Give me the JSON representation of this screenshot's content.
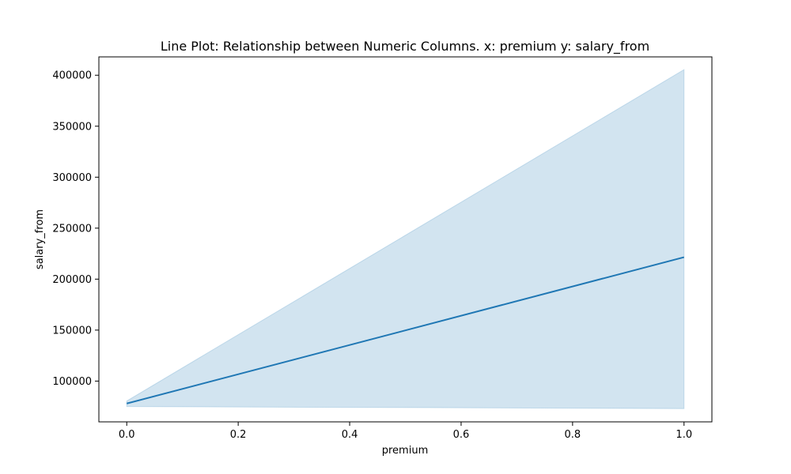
{
  "chart_data": {
    "type": "line",
    "title": "Line Plot: Relationship between Numeric Columns. x: premium y: salary_from",
    "xlabel": "premium",
    "ylabel": "salary_from",
    "xlim": [
      -0.05,
      1.05
    ],
    "ylim": [
      60000,
      418000
    ],
    "x_ticks": [
      0.0,
      0.2,
      0.4,
      0.6,
      0.8,
      1.0
    ],
    "x_tick_labels": [
      "0.0",
      "0.2",
      "0.4",
      "0.6",
      "0.8",
      "1.0"
    ],
    "y_ticks": [
      100000,
      150000,
      200000,
      250000,
      300000,
      350000,
      400000
    ],
    "y_tick_labels": [
      "100000",
      "150000",
      "200000",
      "250000",
      "300000",
      "350000",
      "400000"
    ],
    "grid": false,
    "series": [
      {
        "x": [
          0.0,
          1.0
        ],
        "y": [
          78000,
          221500
        ],
        "ci_lower": [
          75000,
          73000
        ],
        "ci_upper": [
          80500,
          405500
        ],
        "color": "#1f77b4",
        "band_color": "#1f77b4"
      }
    ]
  }
}
